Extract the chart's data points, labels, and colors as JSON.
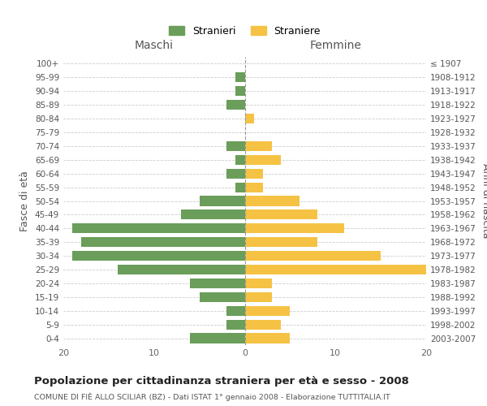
{
  "age_groups": [
    "0-4",
    "5-9",
    "10-14",
    "15-19",
    "20-24",
    "25-29",
    "30-34",
    "35-39",
    "40-44",
    "45-49",
    "50-54",
    "55-59",
    "60-64",
    "65-69",
    "70-74",
    "75-79",
    "80-84",
    "85-89",
    "90-94",
    "95-99",
    "100+"
  ],
  "birth_years": [
    "2003-2007",
    "1998-2002",
    "1993-1997",
    "1988-1992",
    "1983-1987",
    "1978-1982",
    "1973-1977",
    "1968-1972",
    "1963-1967",
    "1958-1962",
    "1953-1957",
    "1948-1952",
    "1943-1947",
    "1938-1942",
    "1933-1937",
    "1928-1932",
    "1923-1927",
    "1918-1922",
    "1913-1917",
    "1908-1912",
    "≤ 1907"
  ],
  "maschi": [
    6,
    2,
    2,
    5,
    6,
    14,
    19,
    18,
    19,
    7,
    5,
    1,
    2,
    1,
    2,
    0,
    0,
    2,
    1,
    1,
    0
  ],
  "femmine": [
    5,
    4,
    5,
    3,
    3,
    20,
    15,
    8,
    11,
    8,
    6,
    2,
    2,
    4,
    3,
    0,
    1,
    0,
    0,
    0,
    0
  ],
  "maschi_color": "#6a9e5a",
  "femmine_color": "#f5c244",
  "bg_color": "#ffffff",
  "grid_color": "#cccccc",
  "title": "Popolazione per cittadinanza straniera per età e sesso - 2008",
  "subtitle": "COMUNE DI FIÈ ALLO SCILIAR (BZ) - Dati ISTAT 1° gennaio 2008 - Elaborazione TUTTITALIA.IT",
  "xlabel_left": "Maschi",
  "xlabel_right": "Femmine",
  "ylabel_left": "Fasce di età",
  "ylabel_right": "Anni di nascita",
  "legend_maschi": "Stranieri",
  "legend_femmine": "Straniere",
  "xlim": 20
}
